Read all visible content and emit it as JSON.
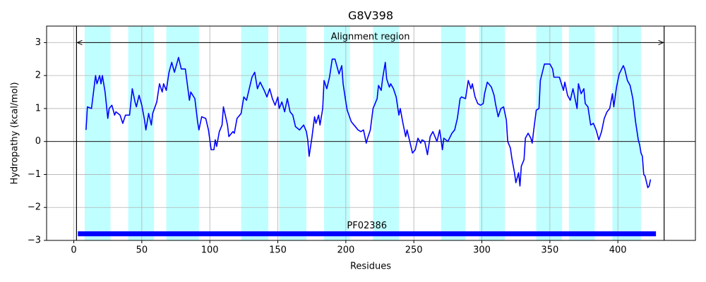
{
  "chart_data": {
    "type": "line",
    "title": "G8V398",
    "xlabel": "Residues",
    "ylabel": "Hydropathy (kcal/mol)",
    "color": "#0000ff",
    "xlim": [
      -20,
      457
    ],
    "ylim": [
      -3,
      3.5
    ],
    "xticks": [
      0,
      50,
      100,
      150,
      200,
      250,
      300,
      350,
      400
    ],
    "yticks": [
      {
        "value": -3,
        "label": "−3"
      },
      {
        "value": -2,
        "label": "−2"
      },
      {
        "value": -1,
        "label": "−1"
      },
      0,
      1,
      2,
      3
    ],
    "grid": true,
    "hlines": [
      0
    ],
    "regions": {
      "color": "#c0ffff",
      "spans": [
        [
          8,
          27
        ],
        [
          40,
          59
        ],
        [
          68,
          92
        ],
        [
          123,
          143
        ],
        [
          151,
          171
        ],
        [
          184,
          203
        ],
        [
          220,
          239
        ],
        [
          270,
          288
        ],
        [
          298,
          317
        ],
        [
          340,
          359
        ],
        [
          364,
          383
        ],
        [
          396,
          417
        ]
      ]
    },
    "alignment": {
      "label": "Alignment region",
      "start": 2,
      "end": 434,
      "y": 3
    },
    "domains": [
      {
        "label": "PF02386",
        "start": 3,
        "end": 428,
        "y": -2.8,
        "color": "#0000ff"
      }
    ],
    "x": [
      9,
      10,
      13,
      16,
      17,
      19,
      20,
      21,
      23,
      25,
      26,
      28,
      30,
      31,
      34,
      36,
      38,
      41,
      43,
      45,
      46,
      48,
      50,
      52,
      53,
      55,
      57,
      58,
      61,
      63,
      65,
      66,
      68,
      70,
      72,
      74,
      77,
      79,
      82,
      85,
      86,
      89,
      91,
      92,
      94,
      97,
      99,
      101,
      103,
      104,
      105,
      107,
      109,
      110,
      113,
      114,
      117,
      118,
      120,
      123,
      125,
      127,
      129,
      131,
      133,
      135,
      137,
      140,
      142,
      144,
      146,
      148,
      150,
      151,
      153,
      155,
      157,
      159,
      161,
      163,
      166,
      169,
      171,
      172,
      173,
      175,
      177,
      178,
      180,
      181,
      183,
      184,
      186,
      188,
      190,
      192,
      195,
      197,
      198,
      200,
      201,
      204,
      206,
      209,
      211,
      213,
      215,
      216,
      218,
      220,
      223,
      224,
      226,
      227,
      229,
      230,
      232,
      233,
      235,
      237,
      239,
      240,
      242,
      244,
      245,
      247,
      249,
      251,
      253,
      255,
      256,
      258,
      260,
      262,
      264,
      267,
      269,
      271,
      272,
      275,
      278,
      280,
      282,
      284,
      285,
      288,
      290,
      292,
      293,
      295,
      297,
      299,
      301,
      302,
      304,
      307,
      309,
      310,
      312,
      314,
      316,
      318,
      319,
      321,
      322,
      324,
      325,
      327,
      328,
      329,
      331,
      332,
      334,
      336,
      337,
      338,
      340,
      342,
      343,
      346,
      350,
      352,
      353,
      357,
      360,
      361,
      363,
      365,
      367,
      370,
      371,
      373,
      375,
      376,
      378,
      380,
      382,
      384,
      386,
      388,
      390,
      392,
      394,
      396,
      397,
      399,
      401,
      404,
      405,
      407,
      409,
      411,
      413,
      415,
      416,
      417,
      418,
      419,
      420,
      422,
      423,
      424
    ],
    "values": [
      0.35,
      1.05,
      1.0,
      2.0,
      1.75,
      2.0,
      1.75,
      2.0,
      1.5,
      0.7,
      1.0,
      1.1,
      0.8,
      0.9,
      0.8,
      0.55,
      0.8,
      0.8,
      1.6,
      1.2,
      1.05,
      1.4,
      1.1,
      0.65,
      0.35,
      0.85,
      0.5,
      0.85,
      1.2,
      1.75,
      1.5,
      1.75,
      1.55,
      2.1,
      2.4,
      2.1,
      2.55,
      2.2,
      2.2,
      1.25,
      1.5,
      1.3,
      0.6,
      0.35,
      0.75,
      0.7,
      0.35,
      -0.25,
      -0.25,
      0.05,
      -0.15,
      0.3,
      0.5,
      1.05,
      0.5,
      0.15,
      0.3,
      0.25,
      0.7,
      0.85,
      1.35,
      1.25,
      1.6,
      1.95,
      2.1,
      1.6,
      1.8,
      1.55,
      1.35,
      1.6,
      1.3,
      1.1,
      1.35,
      1.0,
      1.2,
      0.9,
      1.3,
      0.9,
      0.8,
      0.45,
      0.35,
      0.5,
      0.3,
      0.05,
      -0.45,
      0.1,
      0.75,
      0.55,
      0.8,
      0.5,
      1.0,
      1.85,
      1.6,
      1.95,
      2.5,
      2.5,
      2.05,
      2.3,
      1.75,
      1.2,
      0.95,
      0.6,
      0.5,
      0.35,
      0.3,
      0.35,
      -0.05,
      0.1,
      0.35,
      1.0,
      1.3,
      1.7,
      1.55,
      1.9,
      2.4,
      1.9,
      1.65,
      1.75,
      1.6,
      1.35,
      0.8,
      1.0,
      0.55,
      0.15,
      0.35,
      0.0,
      -0.35,
      -0.25,
      0.1,
      -0.05,
      0.05,
      0.0,
      -0.4,
      0.15,
      0.3,
      0.0,
      0.35,
      -0.25,
      0.1,
      0.0,
      0.25,
      0.35,
      0.7,
      1.3,
      1.35,
      1.3,
      1.85,
      1.6,
      1.75,
      1.35,
      1.15,
      1.1,
      1.15,
      1.45,
      1.8,
      1.65,
      1.4,
      1.15,
      0.75,
      1.0,
      1.05,
      0.65,
      0.0,
      -0.2,
      -0.5,
      -0.95,
      -1.25,
      -0.95,
      -1.35,
      -0.75,
      -0.55,
      0.1,
      0.25,
      0.1,
      -0.05,
      0.3,
      0.95,
      1.0,
      1.85,
      2.35,
      2.35,
      2.2,
      1.95,
      1.95,
      1.55,
      1.8,
      1.4,
      1.25,
      1.6,
      1.0,
      1.75,
      1.45,
      1.6,
      1.15,
      1.05,
      0.5,
      0.55,
      0.35,
      0.05,
      0.3,
      0.7,
      0.9,
      1.0,
      1.45,
      1.05,
      1.65,
      2.05,
      2.3,
      2.2,
      1.85,
      1.7,
      1.3,
      0.6,
      0.05,
      -0.1,
      -0.35,
      -0.45,
      -1.0,
      -1.05,
      -1.4,
      -1.35,
      -1.15
    ]
  }
}
